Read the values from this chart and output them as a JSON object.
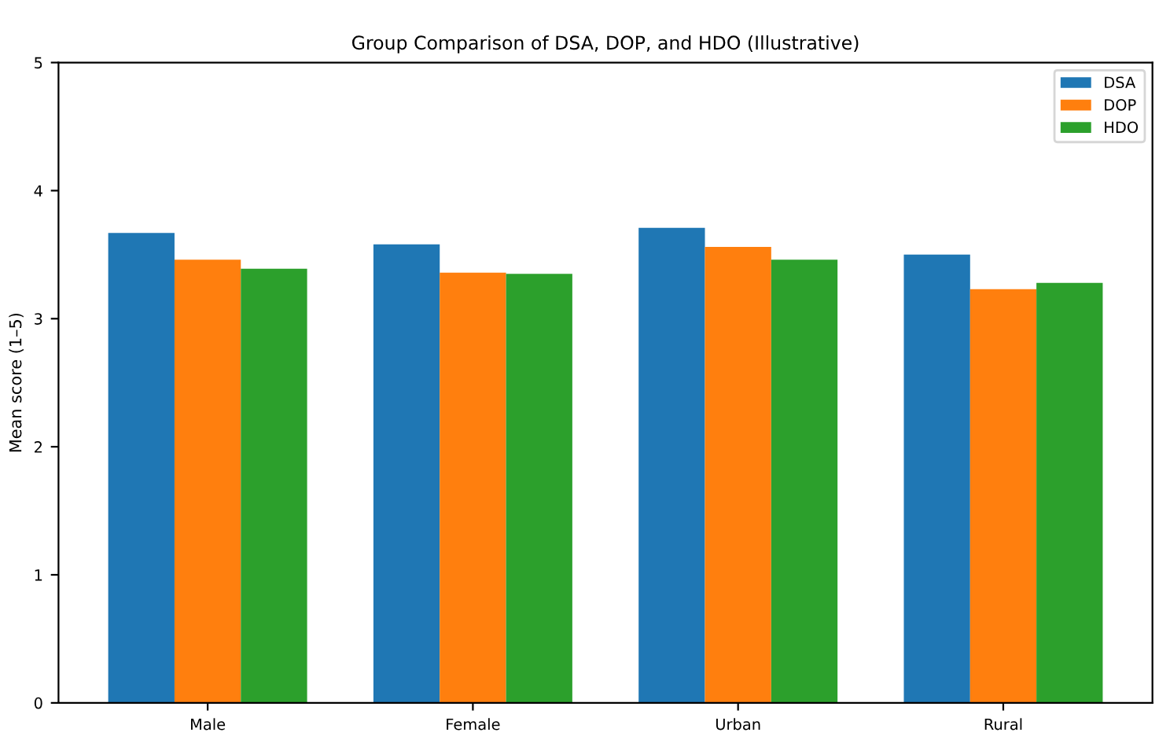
{
  "chart_data": {
    "type": "bar",
    "title": "Group Comparison of DSA, DOP, and HDO (Illustrative)",
    "ylabel": "Mean score (1–5)",
    "categories": [
      "Male",
      "Female",
      "Urban",
      "Rural"
    ],
    "series": [
      {
        "name": "DSA",
        "color": "#1f77b4",
        "values": [
          3.67,
          3.58,
          3.71,
          3.5
        ]
      },
      {
        "name": "DOP",
        "color": "#ff7f0e",
        "values": [
          3.46,
          3.36,
          3.56,
          3.23
        ]
      },
      {
        "name": "HDO",
        "color": "#2ca02c",
        "values": [
          3.39,
          3.35,
          3.46,
          3.28
        ]
      }
    ],
    "ylim": [
      0,
      5
    ],
    "yticks": [
      0,
      1,
      2,
      3,
      4,
      5
    ],
    "grid": false,
    "legend": "top right"
  }
}
